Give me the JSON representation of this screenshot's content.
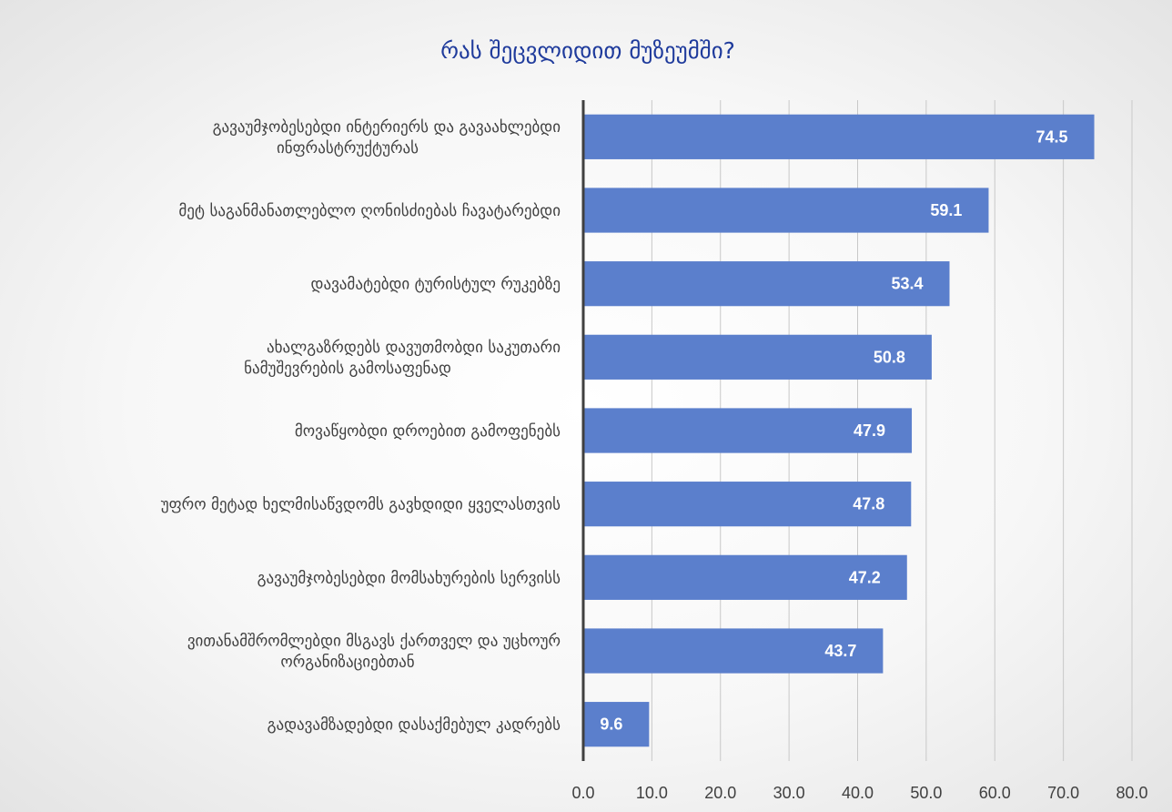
{
  "chart_data": {
    "type": "bar",
    "orientation": "horizontal",
    "title": "რას შეცვლიდით მუზეუმში?",
    "xlabel": "",
    "ylabel": "",
    "xlim": [
      0,
      80
    ],
    "x_ticks": [
      "0.0",
      "10.0",
      "20.0",
      "30.0",
      "40.0",
      "50.0",
      "60.0",
      "70.0",
      "80.0"
    ],
    "grid": true,
    "legend": "none",
    "categories": [
      [
        "გავაუმჯობესებდი ინტერიერს  და გავაახლებდი",
        "ინფრასტრუქტურას"
      ],
      [
        "მეტ საგანმანათლებლო ღონისძიებას ჩავატარებდი"
      ],
      [
        "დავამატებდი ტურისტულ რუკებზე"
      ],
      [
        "ახალგაზრდებს დავუთმობდი საკუთარი",
        "ნამუშევრების გამოსაფენად"
      ],
      [
        "მოვაწყობდი დროებით გამოფენებს"
      ],
      [
        "უფრო მეტად ხელმისაწვდომს გავხდიდი ყველასთვის"
      ],
      [
        "გავაუმჯობესებდი მომსახურების სერვისს"
      ],
      [
        "ვითანამშრომლებდი მსგავს ქართველ და უცხოურ",
        "ორგანიზაციებთან"
      ],
      [
        "გადავამზადებდი დასაქმებულ კადრებს"
      ]
    ],
    "values": [
      74.5,
      59.1,
      53.4,
      50.8,
      47.9,
      47.8,
      47.2,
      43.7,
      9.6
    ],
    "value_labels": [
      "74.5",
      "59.1",
      "53.4",
      "50.8",
      "47.9",
      "47.8",
      "47.2",
      "43.7",
      "9.6"
    ],
    "colors": {
      "bar": "#5b7fcc",
      "title": "#1f3b9c",
      "axis": "#404040",
      "grid": "#c8c8c8",
      "label_text": "#404040",
      "data_label": "#ffffff"
    }
  }
}
